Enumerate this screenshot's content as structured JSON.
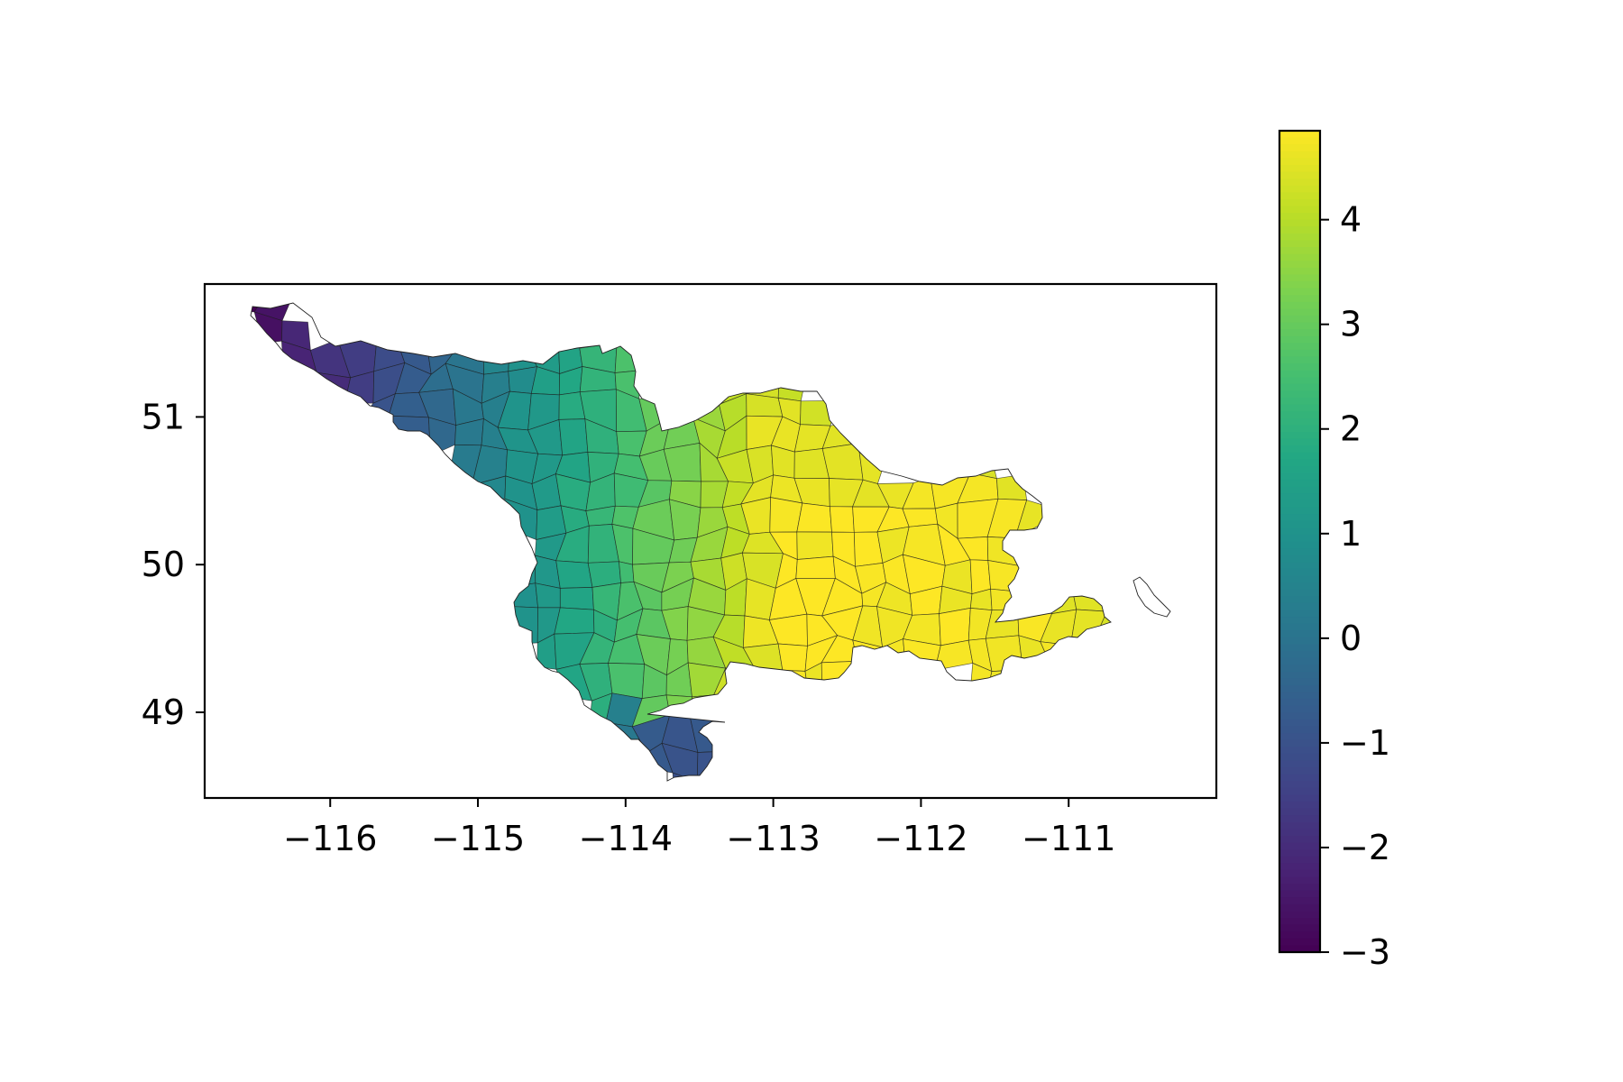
{
  "chart_data": {
    "type": "choropleth",
    "x_ticks": [
      "−116",
      "−115",
      "−114",
      "−113",
      "−112",
      "−111"
    ],
    "x_tick_values": [
      -116,
      -115,
      -114,
      -113,
      -112,
      -111
    ],
    "y_ticks": [
      "49",
      "50",
      "51"
    ],
    "y_tick_values": [
      49,
      50,
      51
    ],
    "xlim": [
      -116.85,
      -110.0
    ],
    "ylim": [
      48.42,
      51.9
    ],
    "colorbar": {
      "colormap": "viridis",
      "range": [
        -3,
        4.85
      ],
      "ticks": [
        "−3",
        "−2",
        "−1",
        "0",
        "1",
        "2",
        "3",
        "4"
      ],
      "tick_values": [
        -3,
        -2,
        -1,
        0,
        1,
        2,
        3,
        4
      ]
    },
    "gradient_description": "values lowest in the north-west (about -3) and highest in the south-east interior (about 4.8)",
    "colors": {
      "min": "#440154",
      "max": "#fde725",
      "outline": "#000000"
    }
  }
}
